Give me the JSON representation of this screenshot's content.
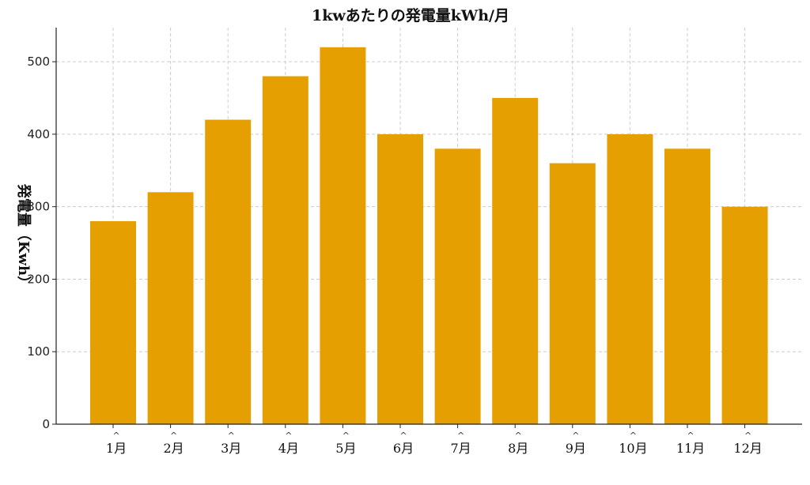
{
  "chart_data": {
    "type": "bar",
    "title": "1kwあたりの発電量kWh/月",
    "xlabel": "",
    "ylabel": "発電量（Kwh）",
    "categories": [
      "1月",
      "2月",
      "3月",
      "4月",
      "5月",
      "6月",
      "7月",
      "8月",
      "9月",
      "10月",
      "11月",
      "12月"
    ],
    "values": [
      280,
      320,
      420,
      480,
      520,
      400,
      380,
      450,
      360,
      400,
      380,
      300
    ],
    "ylim": [
      0,
      547
    ],
    "yticks": [
      0,
      100,
      200,
      300,
      400,
      500
    ],
    "grid": true,
    "bar_color": "#E69F00"
  }
}
